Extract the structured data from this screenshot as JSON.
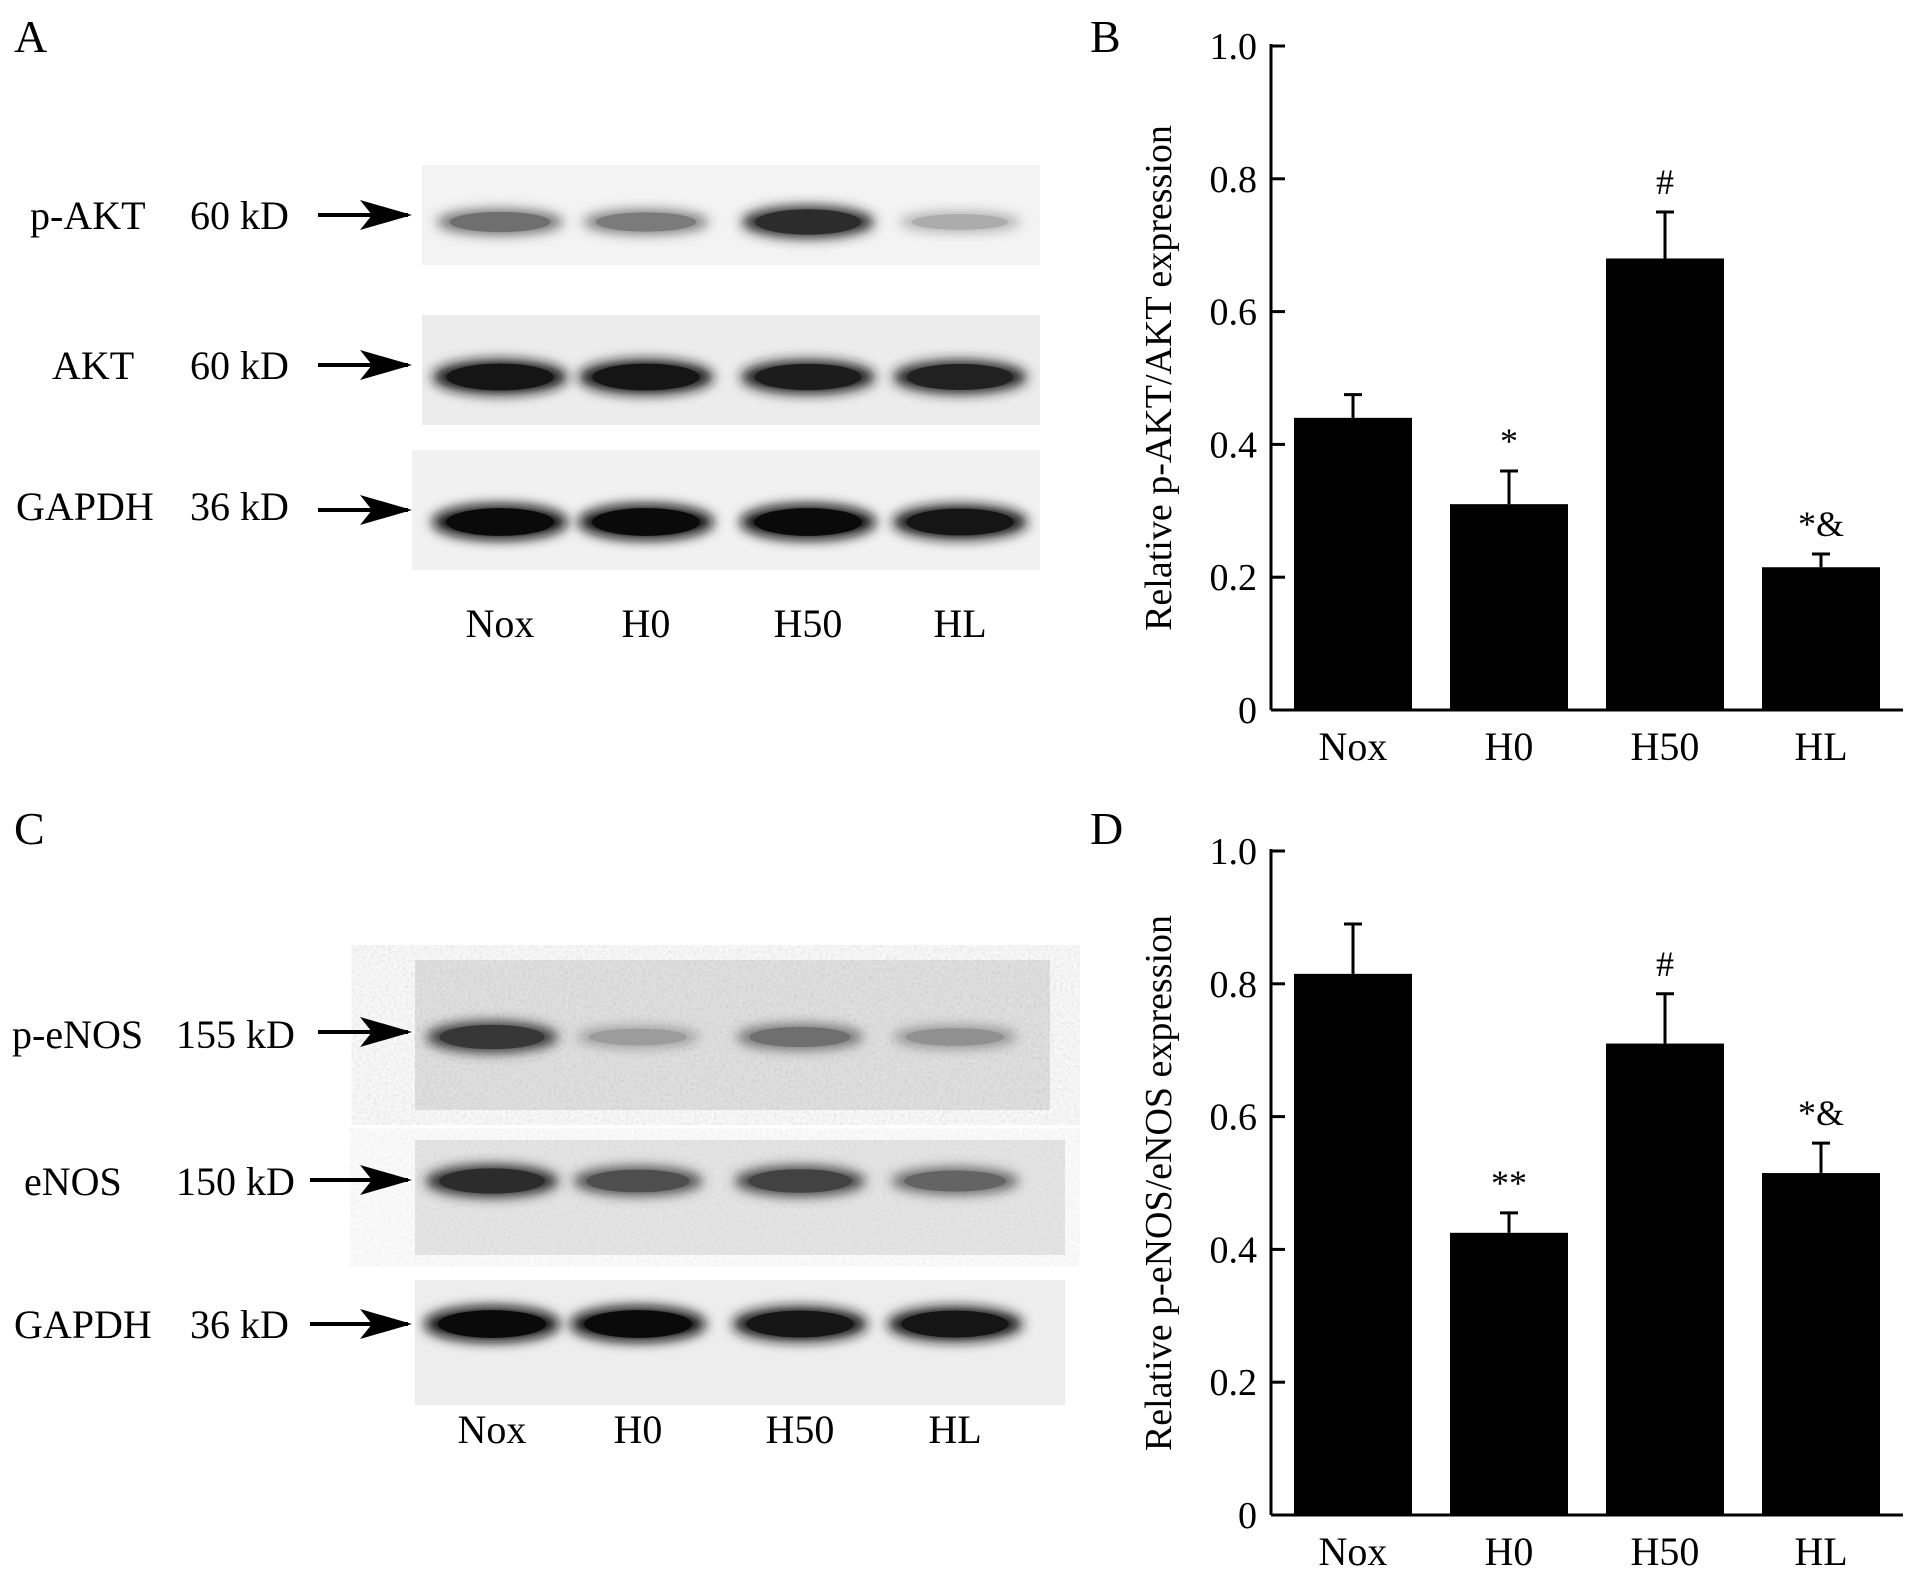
{
  "figure": {
    "panels": {
      "A": {
        "letter": "A",
        "rows": [
          {
            "protein": "p-AKT",
            "size": "60 kD",
            "intensity": [
              0.55,
              0.5,
              0.85,
              0.28
            ]
          },
          {
            "protein": "AKT",
            "size": "60 kD",
            "intensity": [
              0.95,
              0.95,
              0.92,
              0.9
            ]
          },
          {
            "protein": "GAPDH",
            "size": "36 kD",
            "intensity": [
              1.0,
              1.0,
              1.0,
              0.95
            ]
          }
        ],
        "lanes": [
          "Nox",
          "H0",
          "H50",
          "HL"
        ]
      },
      "C": {
        "letter": "C",
        "rows": [
          {
            "protein": "p-eNOS",
            "size": "155 kD",
            "intensity": [
              0.8,
              0.35,
              0.55,
              0.4
            ]
          },
          {
            "protein": "eNOS",
            "size": "150 kD",
            "intensity": [
              0.85,
              0.7,
              0.75,
              0.6
            ]
          },
          {
            "protein": "GAPDH",
            "size": "36 kD",
            "intensity": [
              1.0,
              1.0,
              0.95,
              0.95
            ]
          }
        ],
        "lanes": [
          "Nox",
          "H0",
          "H50",
          "HL"
        ]
      }
    }
  },
  "chart_data": [
    {
      "panel": "B",
      "type": "bar",
      "categories": [
        "Nox",
        "H0",
        "H50",
        "HL"
      ],
      "values": [
        0.44,
        0.31,
        0.68,
        0.215
      ],
      "errors": [
        0.035,
        0.05,
        0.07,
        0.02
      ],
      "annotations": [
        "",
        "*",
        "#",
        "*&"
      ],
      "ylabel": "Relative p-AKT/AKT expression",
      "ylim": [
        0,
        1.0
      ],
      "yticks": [
        "0",
        "0.2",
        "0.4",
        "0.6",
        "0.8",
        "1.0"
      ],
      "bar_color": "#000000"
    },
    {
      "panel": "D",
      "type": "bar",
      "categories": [
        "Nox",
        "H0",
        "H50",
        "HL"
      ],
      "values": [
        0.815,
        0.425,
        0.71,
        0.515
      ],
      "errors": [
        0.075,
        0.03,
        0.075,
        0.045
      ],
      "annotations": [
        "",
        "**",
        "#",
        "*&"
      ],
      "ylabel": "Relative p-eNOS/eNOS expression",
      "ylim": [
        0,
        1.0
      ],
      "yticks": [
        "0",
        "0.2",
        "0.4",
        "0.6",
        "0.8",
        "1.0"
      ],
      "bar_color": "#000000"
    }
  ]
}
